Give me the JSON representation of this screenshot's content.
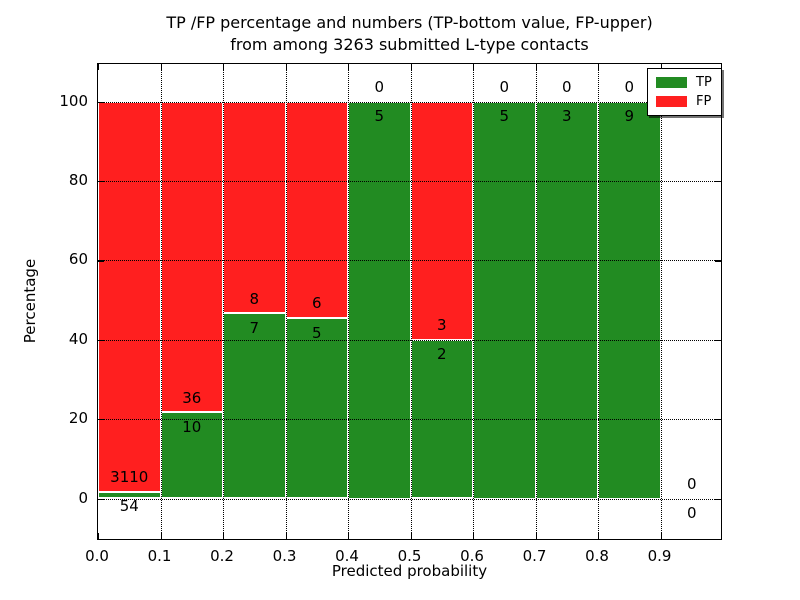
{
  "title": {
    "line1": "TP /FP percentage and numbers (TP-bottom value, FP-upper)",
    "line2": "from among 3263 submitted L-type contacts"
  },
  "chart_data": {
    "type": "bar",
    "variant": "stacked-percentage",
    "title": "TP /FP percentage and numbers (TP-bottom value, FP-upper) from among 3263 submitted L-type contacts",
    "xlabel": "Predicted probability",
    "ylabel": "Percentage",
    "xlim": [
      0.0,
      1.0
    ],
    "ylim": [
      -11,
      109.5
    ],
    "grid": "dotted-both-axes",
    "xticks": [
      "0.0",
      "0.1",
      "0.2",
      "0.3",
      "0.4",
      "0.5",
      "0.6",
      "0.7",
      "0.8",
      "0.9"
    ],
    "xtick_values": [
      0.0,
      0.1,
      0.2,
      0.3,
      0.4,
      0.5,
      0.6,
      0.7,
      0.8,
      0.9
    ],
    "yticks": [
      "0",
      "20",
      "40",
      "60",
      "80",
      "100"
    ],
    "ytick_values": [
      0,
      20,
      40,
      60,
      80,
      100
    ],
    "legend": {
      "position": "upper-right",
      "entries": [
        {
          "label": "TP",
          "color": "#228b22"
        },
        {
          "label": "FP",
          "color": "#ff1f1f"
        }
      ]
    },
    "total_contacts": 3263,
    "bins": [
      {
        "x_start": 0.0,
        "x_end": 0.1,
        "tp": 54,
        "fp": 3110,
        "tp_pct": 1.71
      },
      {
        "x_start": 0.1,
        "x_end": 0.2,
        "tp": 10,
        "fp": 36,
        "tp_pct": 21.74
      },
      {
        "x_start": 0.2,
        "x_end": 0.3,
        "tp": 7,
        "fp": 8,
        "tp_pct": 46.67
      },
      {
        "x_start": 0.3,
        "x_end": 0.4,
        "tp": 5,
        "fp": 6,
        "tp_pct": 45.45
      },
      {
        "x_start": 0.4,
        "x_end": 0.5,
        "tp": 5,
        "fp": 0,
        "tp_pct": 100
      },
      {
        "x_start": 0.5,
        "x_end": 0.6,
        "tp": 2,
        "fp": 3,
        "tp_pct": 40
      },
      {
        "x_start": 0.6,
        "x_end": 0.7,
        "tp": 5,
        "fp": 0,
        "tp_pct": 100
      },
      {
        "x_start": 0.7,
        "x_end": 0.8,
        "tp": 3,
        "fp": 0,
        "tp_pct": 100
      },
      {
        "x_start": 0.8,
        "x_end": 0.9,
        "tp": 9,
        "fp": 0,
        "tp_pct": 100
      },
      {
        "x_start": 0.9,
        "x_end": 1.0,
        "tp": 0,
        "fp": 0,
        "tp_pct": 0
      }
    ],
    "colors": {
      "tp": "#228b22",
      "fp": "#ff1f1f",
      "bar_edge": "#ffffff",
      "grid": "#000000",
      "text": "#000000",
      "background": "#ffffff"
    }
  }
}
